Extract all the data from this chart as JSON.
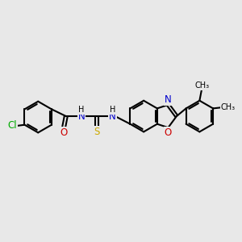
{
  "bg_color": "#e8e8e8",
  "bond_color": "#000000",
  "bond_width": 1.5,
  "atom_colors": {
    "C": "#000000",
    "N": "#0000cc",
    "O": "#cc0000",
    "S": "#ccaa00",
    "Cl": "#00aa00",
    "H": "#000000"
  },
  "font_size": 8.5,
  "fig_width": 3.0,
  "fig_height": 3.0,
  "dpi": 100
}
